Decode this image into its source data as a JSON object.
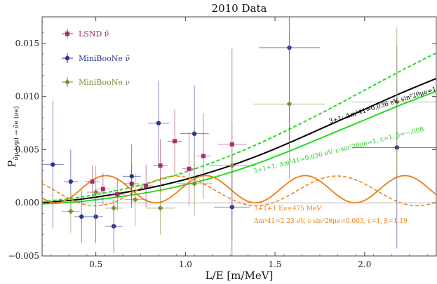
{
  "chart_data": {
    "type": "scatter",
    "title": "2010 Data",
    "xlabel": "L/E [m/MeV]",
    "ylabel": "P",
    "ylabel_sub": "ν̄μ (νμ) → ν̄e (νe)",
    "xlim": [
      0.2,
      2.4
    ],
    "ylim": [
      -0.005,
      0.0175
    ],
    "x_ticks": [
      {
        "value": 0.5,
        "label": "0.5"
      },
      {
        "value": 1.0,
        "label": "1.0"
      },
      {
        "value": 1.5,
        "label": "1.5"
      },
      {
        "value": 2.0,
        "label": "2.0"
      }
    ],
    "y_ticks": [
      {
        "value": -0.005,
        "label": "−0.005"
      },
      {
        "value": 0.0,
        "label": "0.000"
      },
      {
        "value": 0.005,
        "label": "0.005"
      },
      {
        "value": 0.01,
        "label": "0.010"
      },
      {
        "value": 0.015,
        "label": "0.015"
      }
    ],
    "legend_position": "top-left",
    "series": [
      {
        "name": "LSND ν̄",
        "color": "#a0306a",
        "marker": "square",
        "points": [
          {
            "x": 0.54,
            "y": 0.0013,
            "xerr": 0.04,
            "yerr": 0.0015
          },
          {
            "x": 0.62,
            "y": 0.0008,
            "xerr": 0.04,
            "yerr": 0.0015
          },
          {
            "x": 0.7,
            "y": 0.0018,
            "xerr": 0.04,
            "yerr": 0.0018
          },
          {
            "x": 0.78,
            "y": 0.0016,
            "xerr": 0.04,
            "yerr": 0.002
          },
          {
            "x": 0.86,
            "y": 0.0035,
            "xerr": 0.04,
            "yerr": 0.0025
          },
          {
            "x": 0.94,
            "y": 0.0058,
            "xerr": 0.04,
            "yerr": 0.003
          },
          {
            "x": 1.02,
            "y": 0.0032,
            "xerr": 0.04,
            "yerr": 0.0035
          },
          {
            "x": 1.1,
            "y": 0.0044,
            "xerr": 0.04,
            "yerr": 0.004
          },
          {
            "x": 1.26,
            "y": 0.0055,
            "xerr": 0.08,
            "yerr": 0.009
          },
          {
            "x": 0.48,
            "y": 0.002,
            "xerr": 0.04,
            "yerr": 0.0015
          }
        ]
      },
      {
        "name": "MiniBooNe ν̄",
        "color": "#2c3590",
        "marker": "circle",
        "points": [
          {
            "x": 0.26,
            "y": 0.0036,
            "xerr": 0.06,
            "yerr": 0.006
          },
          {
            "x": 0.36,
            "y": 0.002,
            "xerr": 0.04,
            "yerr": 0.003
          },
          {
            "x": 0.42,
            "y": -0.0013,
            "xerr": 0.04,
            "yerr": 0.0025
          },
          {
            "x": 0.5,
            "y": -0.0013,
            "xerr": 0.04,
            "yerr": 0.0025
          },
          {
            "x": 0.6,
            "y": -0.0022,
            "xerr": 0.05,
            "yerr": 0.0025
          },
          {
            "x": 0.7,
            "y": 0.0025,
            "xerr": 0.05,
            "yerr": 0.003
          },
          {
            "x": 0.85,
            "y": 0.0075,
            "xerr": 0.06,
            "yerr": 0.004
          },
          {
            "x": 1.05,
            "y": 0.0065,
            "xerr": 0.08,
            "yerr": 0.0045
          },
          {
            "x": 1.26,
            "y": -0.0004,
            "xerr": 0.1,
            "yerr": 0.005
          },
          {
            "x": 1.58,
            "y": 0.0146,
            "xerr": 0.17,
            "yerr": 0.0095
          },
          {
            "x": 2.18,
            "y": 0.0052,
            "xerr": 0.25,
            "yerr": 0.0095
          }
        ]
      },
      {
        "name": "MiniBooNe ν",
        "color": "#8c8a3a",
        "marker": "diamond",
        "points": [
          {
            "x": 0.36,
            "y": -0.0008,
            "xerr": 0.05,
            "yerr": 0.002
          },
          {
            "x": 0.5,
            "y": 0.001,
            "xerr": 0.05,
            "yerr": 0.0025
          },
          {
            "x": 0.6,
            "y": -0.0005,
            "xerr": 0.05,
            "yerr": 0.002
          },
          {
            "x": 0.72,
            "y": 0.0003,
            "xerr": 0.06,
            "yerr": 0.0025
          },
          {
            "x": 0.86,
            "y": -0.0005,
            "xerr": 0.08,
            "yerr": 0.0025
          },
          {
            "x": 1.05,
            "y": 0.0018,
            "xerr": 0.1,
            "yerr": 0.003
          },
          {
            "x": 1.26,
            "y": 0.0035,
            "xerr": 0.13,
            "yerr": 0.004
          },
          {
            "x": 1.58,
            "y": 0.0093,
            "xerr": 0.2,
            "yerr": 0.007
          },
          {
            "x": 2.18,
            "y": 0.0095,
            "xerr": 0.25,
            "yerr": 0.007
          }
        ]
      }
    ],
    "curves": [
      {
        "name": "3+1: Δm²41=0.036 eV, sin²2θμe=1",
        "color": "#000000",
        "style": "solid",
        "width": 2,
        "x": [
          0.2,
          0.4,
          0.6,
          0.8,
          1.0,
          1.2,
          1.4,
          1.6,
          1.8,
          2.0,
          2.2,
          2.4
        ],
        "y": [
          0.0,
          0.0003,
          0.0008,
          0.0014,
          0.0022,
          0.0032,
          0.0044,
          0.0058,
          0.0073,
          0.0088,
          0.0103,
          0.0117
        ]
      },
      {
        "name": "3+1+1 dashed (upper)",
        "color": "#22dd22",
        "style": "dashed",
        "width": 2,
        "x": [
          0.2,
          0.4,
          0.6,
          0.8,
          1.0,
          1.2,
          1.4,
          1.6,
          1.8,
          2.0,
          2.2,
          2.4
        ],
        "y": [
          0.0001,
          0.0005,
          0.0011,
          0.0019,
          0.0029,
          0.0041,
          0.0055,
          0.0071,
          0.0088,
          0.0106,
          0.0124,
          0.0141
        ]
      },
      {
        "name": "3+1+1: Δm²41=0.036 eV, ε·sin²2θμe=1, ε=1, β=−.008",
        "color": "#22dd22",
        "style": "solid",
        "width": 2,
        "x": [
          0.2,
          0.4,
          0.6,
          0.8,
          1.0,
          1.2,
          1.4,
          1.6,
          1.8,
          2.0,
          2.2,
          2.4
        ],
        "y": [
          -0.0001,
          0.0001,
          0.0005,
          0.001,
          0.0017,
          0.0026,
          0.0037,
          0.005,
          0.0064,
          0.0078,
          0.0092,
          0.0105
        ]
      },
      {
        "name": "3+1+1 Eν≥475 MeV: Δm²41=2.23 eV, ε·sin²2θμe=0.003, ε=1, β=1.19",
        "color": "#f07d10",
        "style": "solid",
        "width": 1.8,
        "kind": "sine",
        "A": 0.00128,
        "offset": 0.00128,
        "omega": 11.3,
        "phase": 0
      },
      {
        "name": "orange dashed",
        "color": "#f07d10",
        "style": "dashed",
        "width": 1.5,
        "kind": "sine",
        "A": 0.0014,
        "offset": 0.00112,
        "omega": 7.0,
        "phase": -0.35
      }
    ],
    "annotations": [
      {
        "text": "3+1: Δm²41=0.036 eV, sin²2θμe=1",
        "color": "#000000"
      },
      {
        "text": "3+1+1: Δm²41=0.036 eV, ε·sin²2θμe=1, ε=1, β=−.008",
        "color": "#22cc22"
      },
      {
        "text": "3+1+1 Eν≥475 MeV:",
        "color": "#f07d10"
      },
      {
        "text": "Δm²41=2.23 eV, ε·sin²2θμe=0.003, ε=1, β=1.19",
        "color": "#f07d10"
      }
    ]
  }
}
